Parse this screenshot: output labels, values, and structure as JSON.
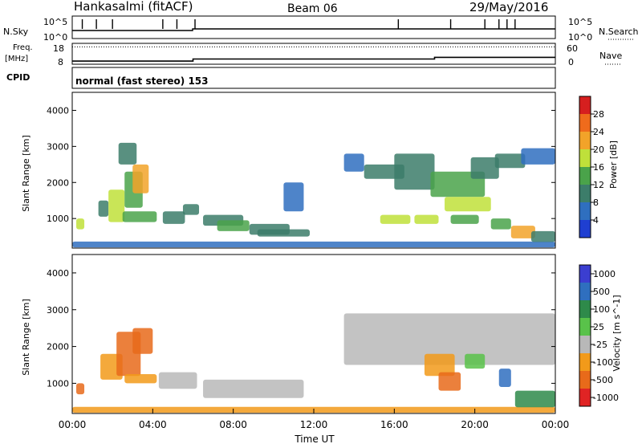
{
  "header": {
    "site": "Hankasalmi (fitACF)",
    "beam": "Beam 06",
    "date": "29/May/2016"
  },
  "colors": {
    "power": [
      "#1f3fd1",
      "#2f6fbf",
      "#3c7d6a",
      "#4aa34a",
      "#bfe03a",
      "#f2a329",
      "#ef6b1c",
      "#d61f1f"
    ],
    "velocity": [
      "#3b3ed0",
      "#2f6fbf",
      "#2e8a4a",
      "#59c24a",
      "#b8b8b8",
      "#f29a1a",
      "#e86a1a",
      "#e02424"
    ]
  },
  "chart_data": [
    {
      "type": "line",
      "id": "nsky-panel",
      "left_label": "N.Sky",
      "right_label": "N.Search",
      "left_ticks": [
        "10^5",
        "10^0"
      ],
      "right_ticks": [
        "10^5",
        "10^0"
      ],
      "ylim": [
        0,
        5
      ]
    },
    {
      "type": "line",
      "id": "freq-panel",
      "left_label": "Freq.",
      "left_unit": "[MHz]",
      "right_label": "Nave",
      "left_ticks": [
        18,
        8
      ],
      "right_ticks": [
        60,
        0
      ],
      "freq_series": {
        "x": [
          0,
          6,
          6,
          18,
          18,
          24
        ],
        "y": [
          9.5,
          9.5,
          10.5,
          10.5,
          11.3,
          11.3
        ]
      },
      "nave_level": 50
    },
    {
      "type": "table",
      "id": "cpid-panel",
      "label": "CPID",
      "segments": [
        {
          "start_hour": 0,
          "end_hour": 24,
          "text": "normal (fast stereo) 153"
        }
      ]
    },
    {
      "type": "heatmap",
      "id": "power-panel",
      "ylabel": "Slant Range [km]",
      "ylim": [
        180,
        4500
      ],
      "yticks": [
        1000,
        2000,
        3000,
        4000
      ],
      "xlim": [
        0,
        24
      ],
      "colorbar": {
        "label": "Power [dB]",
        "range": [
          0,
          32
        ],
        "ticks": [
          4,
          8,
          12,
          16,
          20,
          24,
          28
        ]
      },
      "regions": [
        {
          "t0": 0.0,
          "t1": 24.0,
          "r0": 200,
          "r1": 360,
          "v": 7
        },
        {
          "t0": 0.2,
          "t1": 0.6,
          "r0": 700,
          "r1": 1000,
          "v": 17
        },
        {
          "t0": 1.3,
          "t1": 1.8,
          "r0": 1050,
          "r1": 1500,
          "v": 10
        },
        {
          "t0": 1.8,
          "t1": 2.6,
          "r0": 900,
          "r1": 1800,
          "v": 19
        },
        {
          "t0": 2.6,
          "t1": 3.5,
          "r0": 1300,
          "r1": 2300,
          "v": 14
        },
        {
          "t0": 3.0,
          "t1": 3.8,
          "r0": 1700,
          "r1": 2500,
          "v": 22
        },
        {
          "t0": 2.5,
          "t1": 4.2,
          "r0": 900,
          "r1": 1200,
          "v": 12
        },
        {
          "t0": 2.3,
          "t1": 3.2,
          "r0": 2500,
          "r1": 3100,
          "v": 8
        },
        {
          "t0": 4.5,
          "t1": 5.6,
          "r0": 850,
          "r1": 1200,
          "v": 9
        },
        {
          "t0": 5.5,
          "t1": 6.3,
          "r0": 1100,
          "r1": 1400,
          "v": 10
        },
        {
          "t0": 6.5,
          "t1": 8.5,
          "r0": 800,
          "r1": 1100,
          "v": 10
        },
        {
          "t0": 7.2,
          "t1": 8.8,
          "r0": 650,
          "r1": 950,
          "v": 15
        },
        {
          "t0": 8.8,
          "t1": 10.8,
          "r0": 550,
          "r1": 850,
          "v": 9
        },
        {
          "t0": 9.2,
          "t1": 11.8,
          "r0": 500,
          "r1": 700,
          "v": 8
        },
        {
          "t0": 10.5,
          "t1": 11.5,
          "r0": 1200,
          "r1": 2000,
          "v": 4
        },
        {
          "t0": 13.5,
          "t1": 14.5,
          "r0": 2300,
          "r1": 2800,
          "v": 7
        },
        {
          "t0": 14.5,
          "t1": 16.5,
          "r0": 2100,
          "r1": 2500,
          "v": 11
        },
        {
          "t0": 16.0,
          "t1": 18.0,
          "r0": 1800,
          "r1": 2800,
          "v": 9
        },
        {
          "t0": 17.8,
          "t1": 20.5,
          "r0": 1600,
          "r1": 2300,
          "v": 14
        },
        {
          "t0": 18.5,
          "t1": 20.8,
          "r0": 1200,
          "r1": 1600,
          "v": 17
        },
        {
          "t0": 19.8,
          "t1": 21.2,
          "r0": 2100,
          "r1": 2700,
          "v": 10
        },
        {
          "t0": 21.0,
          "t1": 22.5,
          "r0": 2400,
          "r1": 2800,
          "v": 9
        },
        {
          "t0": 22.3,
          "t1": 24.0,
          "r0": 2500,
          "r1": 2950,
          "v": 6
        },
        {
          "t0": 15.3,
          "t1": 16.8,
          "r0": 850,
          "r1": 1100,
          "v": 18
        },
        {
          "t0": 17.0,
          "t1": 18.2,
          "r0": 850,
          "r1": 1100,
          "v": 16
        },
        {
          "t0": 18.8,
          "t1": 20.2,
          "r0": 850,
          "r1": 1100,
          "v": 12
        },
        {
          "t0": 20.8,
          "t1": 21.8,
          "r0": 700,
          "r1": 1000,
          "v": 12
        },
        {
          "t0": 21.8,
          "t1": 23.0,
          "r0": 450,
          "r1": 800,
          "v": 20
        },
        {
          "t0": 22.8,
          "t1": 24.0,
          "r0": 350,
          "r1": 650,
          "v": 10
        }
      ]
    },
    {
      "type": "heatmap",
      "id": "velocity-panel",
      "ylabel": "Slant Range [km]",
      "xlabel": "Time UT",
      "ylim": [
        180,
        4500
      ],
      "yticks": [
        1000,
        2000,
        3000,
        4000
      ],
      "xlim": [
        0,
        24
      ],
      "xticks": [
        "00:00",
        "04:00",
        "08:00",
        "12:00",
        "16:00",
        "20:00",
        "00:00"
      ],
      "colorbar": {
        "label": "Velocity [m s^-1]",
        "ticks": [
          "1000",
          "500",
          "100",
          "25",
          "-25",
          "-100",
          "-500",
          "-1000"
        ]
      },
      "regions": [
        {
          "t0": 0.0,
          "t1": 24.0,
          "r0": 200,
          "r1": 360,
          "v": -150
        },
        {
          "t0": 0.2,
          "t1": 0.6,
          "r0": 700,
          "r1": 1000,
          "v": -300
        },
        {
          "t0": 1.4,
          "t1": 2.5,
          "r0": 1100,
          "r1": 1800,
          "v": -200
        },
        {
          "t0": 2.2,
          "t1": 3.4,
          "r0": 1200,
          "r1": 2400,
          "v": -400
        },
        {
          "t0": 3.0,
          "t1": 4.0,
          "r0": 1800,
          "r1": 2500,
          "v": -600
        },
        {
          "t0": 2.6,
          "t1": 4.2,
          "r0": 1000,
          "r1": 1250,
          "v": -30
        },
        {
          "t0": 4.3,
          "t1": 6.2,
          "r0": 850,
          "r1": 1300,
          "v": 0
        },
        {
          "t0": 6.5,
          "t1": 11.5,
          "r0": 600,
          "r1": 1100,
          "v": 0
        },
        {
          "t0": 13.5,
          "t1": 24.0,
          "r0": 1500,
          "r1": 2900,
          "v": 0
        },
        {
          "t0": 17.5,
          "t1": 19.0,
          "r0": 1200,
          "r1": 1800,
          "v": -200
        },
        {
          "t0": 18.2,
          "t1": 19.3,
          "r0": 800,
          "r1": 1300,
          "v": -600
        },
        {
          "t0": 19.5,
          "t1": 20.5,
          "r0": 1400,
          "r1": 1800,
          "v": 40
        },
        {
          "t0": 21.2,
          "t1": 21.8,
          "r0": 900,
          "r1": 1400,
          "v": 600
        },
        {
          "t0": 22.0,
          "t1": 24.0,
          "r0": 350,
          "r1": 800,
          "v": 150
        }
      ]
    }
  ]
}
